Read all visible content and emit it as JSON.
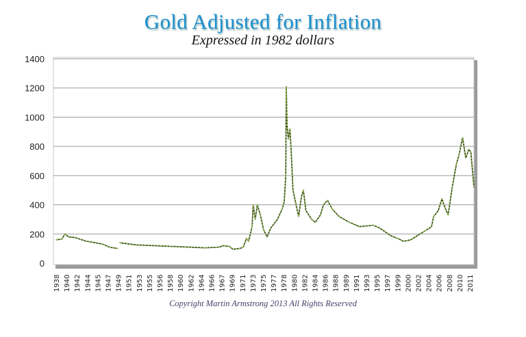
{
  "chart_data": {
    "type": "line",
    "title": "Gold Adjusted for Inflation",
    "subtitle": "Expressed in 1982 dollars",
    "xlabel": "",
    "ylabel": "",
    "ylim": [
      0,
      1400
    ],
    "yticks": [
      "0",
      "200",
      "400",
      "600",
      "800",
      "1000",
      "1200",
      "1400"
    ],
    "xtick_labels": [
      "1938",
      "1940",
      "1942",
      "1944",
      "1945",
      "1947",
      "1949",
      "1951",
      "1953",
      "1955",
      "1956",
      "1958",
      "1960",
      "1962",
      "1964",
      "1966",
      "1967",
      "1969",
      "1971",
      "1973",
      "1975",
      "1977",
      "1978",
      "1980",
      "1982",
      "1984",
      "1986",
      "1988",
      "1989",
      "1991",
      "1993",
      "1995",
      "1997",
      "1999",
      "2000",
      "2002",
      "2004",
      "2006",
      "2008",
      "2010",
      "2011"
    ],
    "grid": true,
    "line_color": "#8db050",
    "series": [
      {
        "segments": [
          [
            [
              1938,
              160
            ],
            [
              1939.1,
              165
            ],
            [
              1939.7,
              200
            ],
            [
              1940.4,
              180
            ],
            [
              1941.7,
              175
            ],
            [
              1943.85,
              150
            ],
            [
              1944.8,
              140
            ],
            [
              1946,
              130
            ],
            [
              1947.3,
              110
            ],
            [
              1948.9,
              100
            ]
          ],
          [
            [
              1949.3,
              140
            ],
            [
              1951.3,
              130
            ],
            [
              1952.6,
              125
            ],
            [
              1958.2,
              115
            ],
            [
              1964.8,
              105
            ],
            [
              1966.8,
              110
            ],
            [
              1967.2,
              120
            ],
            [
              1968.5,
              115
            ],
            [
              1969.2,
              95
            ],
            [
              1970.5,
              100
            ],
            [
              1971.2,
              110
            ],
            [
              1971.8,
              170
            ],
            [
              1972.2,
              150
            ],
            [
              1972.9,
              250
            ],
            [
              1973.1,
              400
            ],
            [
              1973.5,
              300
            ],
            [
              1973.9,
              400
            ],
            [
              1974.5,
              330
            ],
            [
              1975.1,
              230
            ],
            [
              1975.8,
              180
            ],
            [
              1976.5,
              240
            ],
            [
              1977.4,
              300
            ],
            [
              1977.85,
              370
            ],
            [
              1978.1,
              420
            ],
            [
              1978.4,
              600
            ],
            [
              1978.5,
              1210
            ],
            [
              1978.64,
              950
            ],
            [
              1978.9,
              850
            ],
            [
              1979.2,
              920
            ],
            [
              1979.4,
              800
            ],
            [
              1979.8,
              500
            ],
            [
              1980.4,
              400
            ],
            [
              1980.9,
              320
            ],
            [
              1981.4,
              450
            ],
            [
              1981.8,
              500
            ],
            [
              1982.3,
              360
            ],
            [
              1983.4,
              300
            ],
            [
              1984.1,
              280
            ],
            [
              1985.1,
              330
            ],
            [
              1985.7,
              400
            ],
            [
              1986.5,
              430
            ],
            [
              1987.4,
              370
            ],
            [
              1988.35,
              320
            ],
            [
              1989.7,
              280
            ],
            [
              1991.7,
              250
            ],
            [
              1994.3,
              260
            ],
            [
              1995.6,
              240
            ],
            [
              1997.6,
              190
            ],
            [
              1999,
              170
            ],
            [
              1999.6,
              150
            ],
            [
              2000.6,
              160
            ],
            [
              2001.9,
              190
            ],
            [
              2003.3,
              220
            ],
            [
              2004.6,
              250
            ],
            [
              2005,
              320
            ],
            [
              2005.9,
              360
            ],
            [
              2006.6,
              440
            ],
            [
              2007.2,
              380
            ],
            [
              2007.8,
              330
            ],
            [
              2008.6,
              520
            ],
            [
              2009.4,
              680
            ],
            [
              2009.9,
              740
            ],
            [
              2010.3,
              860
            ],
            [
              2010.6,
              720
            ],
            [
              2010.9,
              780
            ],
            [
              2011.1,
              760
            ],
            [
              2011.3,
              600
            ],
            [
              2011.4,
              520
            ]
          ]
        ]
      }
    ]
  },
  "copyright": "Copyright Martin Armstrong 2013 All Rights Reserved"
}
